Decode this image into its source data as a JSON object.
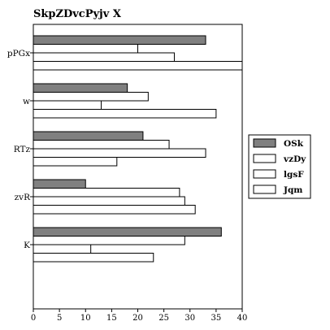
{
  "chart_data": {
    "type": "bar",
    "orientation": "horizontal",
    "title": "SkpZDvcPyjv X",
    "xlabel": "",
    "ylabel": "",
    "categories": [
      "pPGx",
      "w",
      "RTz",
      "zvR",
      "K"
    ],
    "series": [
      {
        "name": "OSk",
        "values": [
          33,
          18,
          21,
          10,
          36
        ],
        "color": "#808080"
      },
      {
        "name": "vzDy",
        "values": [
          20,
          22,
          26,
          28,
          29
        ],
        "color": "#ffffff"
      },
      {
        "name": "lgsF",
        "values": [
          27,
          13,
          33,
          29,
          11
        ],
        "color": "#ffffff"
      },
      {
        "name": "Jqm",
        "values": [
          40,
          35,
          16,
          31,
          23
        ],
        "color": "#ffffff"
      }
    ],
    "xlim": [
      0,
      40
    ],
    "xticks": [
      0,
      5,
      10,
      15,
      20,
      25,
      30,
      35,
      40
    ],
    "grid": false,
    "legend_position": "right"
  }
}
